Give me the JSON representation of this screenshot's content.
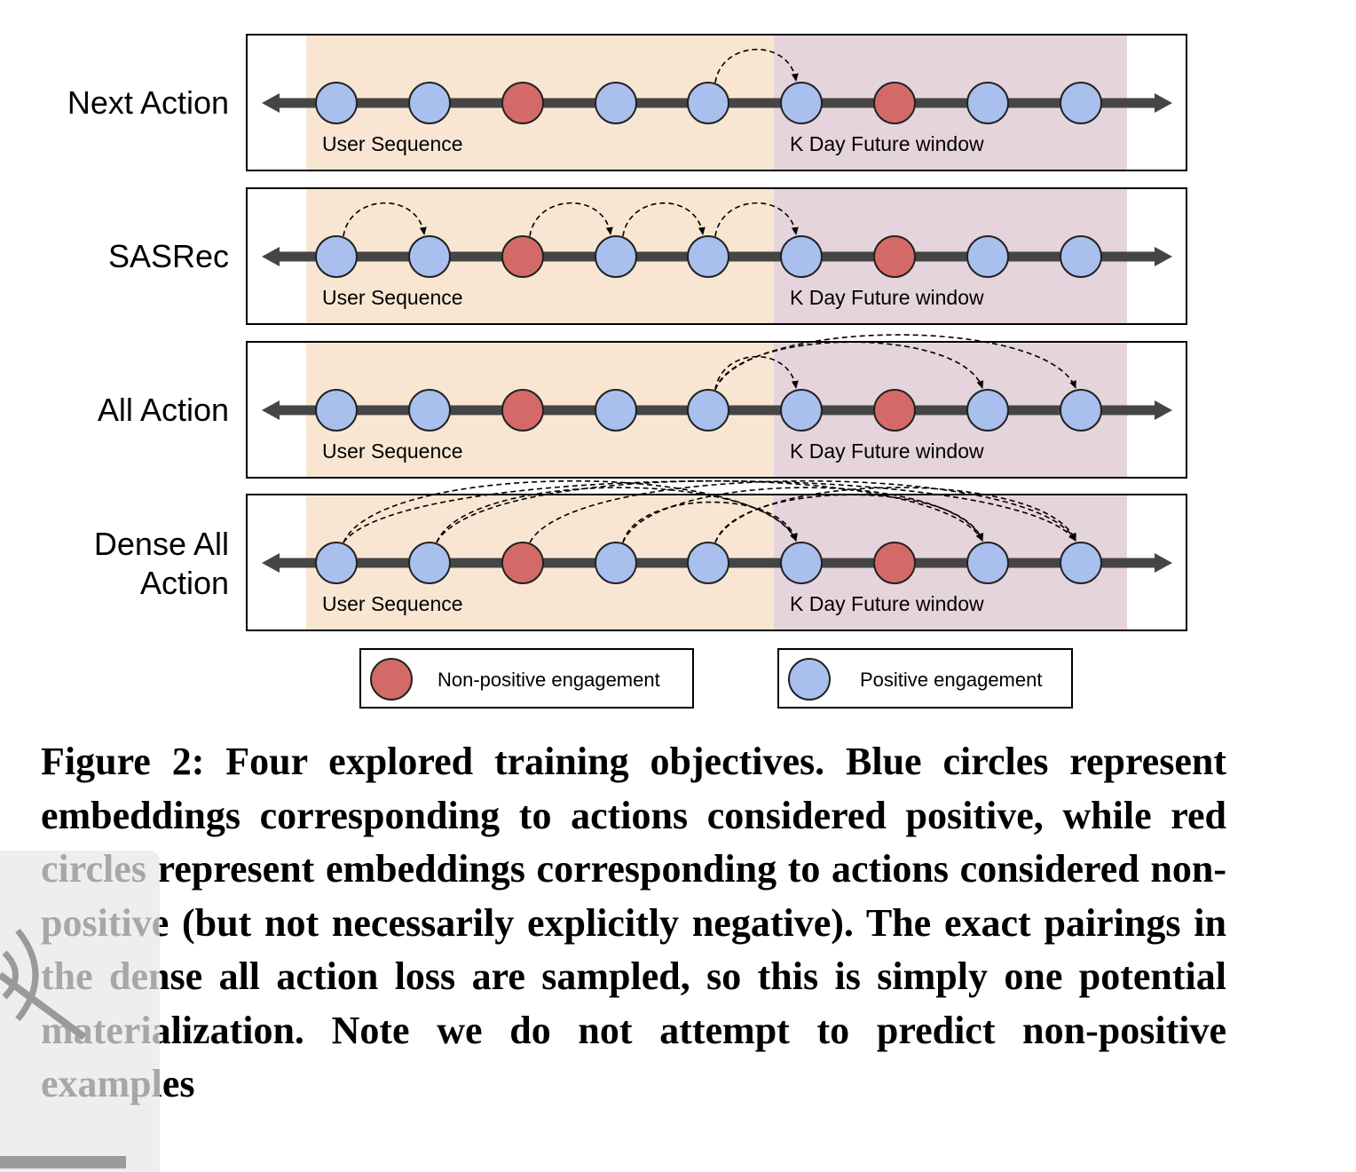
{
  "rows": [
    {
      "label_lines": [
        "Next Action"
      ],
      "pairs": [
        [
          4,
          5
        ]
      ]
    },
    {
      "label_lines": [
        "SASRec"
      ],
      "pairs": [
        [
          0,
          1
        ],
        [
          2,
          3
        ],
        [
          3,
          4
        ],
        [
          4,
          5
        ]
      ]
    },
    {
      "label_lines": [
        "All Action"
      ],
      "pairs": [
        [
          4,
          5
        ],
        [
          4,
          7
        ],
        [
          4,
          8
        ]
      ]
    },
    {
      "label_lines": [
        "Dense All",
        "Action"
      ],
      "pairs": [
        [
          0,
          5
        ],
        [
          1,
          7
        ],
        [
          2,
          8
        ],
        [
          3,
          5
        ],
        [
          4,
          7
        ],
        [
          0,
          8
        ],
        [
          1,
          5
        ],
        [
          3,
          7
        ],
        [
          4,
          8
        ]
      ]
    }
  ],
  "circle_kinds": [
    "positive",
    "positive",
    "non-positive",
    "positive",
    "positive",
    "positive",
    "non-positive",
    "positive",
    "positive"
  ],
  "segments": {
    "user_sequence": "User Sequence",
    "future_window": "K Day Future window"
  },
  "legend": {
    "non_positive": "Non-positive engagement",
    "positive": "Positive engagement"
  },
  "colors": {
    "positive": "#a9c0ee",
    "non_positive": "#d46a67",
    "user_sequence_bg": "#f8e6d3",
    "future_window_bg": "#e6d4dc",
    "axis": "#454545"
  },
  "caption": "Figure 2: Four explored training objectives. Blue circles represent embeddings corresponding to actions considered positive, while red circles represent embeddings corresponding to actions considered non-positive (but not necessarily explicitly negative). The exact pairings in the dense all action loss are sampled, so this is simply one potential materialization. Note we do not attempt to predict non-positive examples"
}
